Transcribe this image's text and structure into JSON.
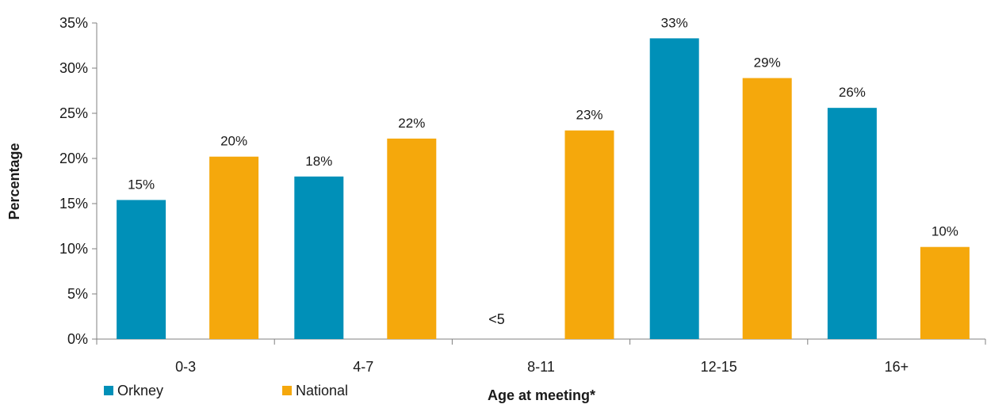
{
  "chart_data": {
    "type": "bar",
    "categories": [
      "0-3",
      "4-7",
      "8-11",
      "12-15",
      "16+"
    ],
    "series": [
      {
        "name": "Orkney",
        "color": "#0090b8",
        "values": [
          15.4,
          18.0,
          null,
          33.3,
          25.6
        ],
        "data_labels": [
          "15%",
          "18%",
          "<5",
          "33%",
          "26%"
        ]
      },
      {
        "name": "National",
        "color": "#f5a80c",
        "values": [
          20.2,
          22.2,
          23.1,
          28.9,
          10.2
        ],
        "data_labels": [
          "20%",
          "22%",
          "23%",
          "29%",
          "10%"
        ]
      }
    ],
    "xlabel": "Age at meeting*",
    "ylabel": "Percentage",
    "ylim": [
      0,
      35
    ],
    "yticks": [
      0,
      5,
      10,
      15,
      20,
      25,
      30,
      35
    ],
    "ytick_labels": [
      "0%",
      "5%",
      "10%",
      "15%",
      "20%",
      "25%",
      "30%",
      "35%"
    ],
    "grid": false,
    "legend_position": "bottom-left"
  }
}
